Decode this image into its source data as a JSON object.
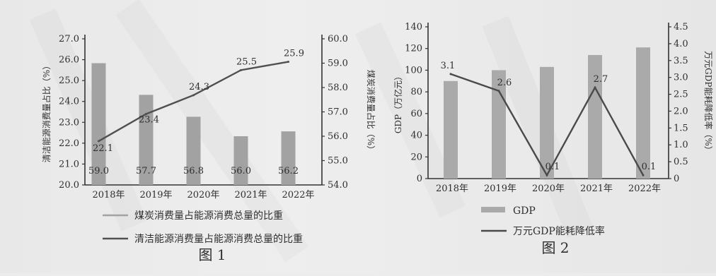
{
  "chart_data": [
    {
      "type": "bar+line",
      "figure_label": "图 1",
      "categories": [
        "2018年",
        "2019年",
        "2020年",
        "2021年",
        "2022年"
      ],
      "left_axis": {
        "label": "清洁能源消费量占比（%）",
        "range": [
          20.0,
          27.0
        ],
        "ticks": [
          "20.0",
          "21.0",
          "22.0",
          "23.0",
          "24.0",
          "25.0",
          "26.0",
          "27.0"
        ]
      },
      "right_axis": {
        "label": "煤炭消费量占比（%）",
        "range": [
          54.0,
          60.0
        ],
        "ticks": [
          "54.0",
          "55.0",
          "56.0",
          "57.0",
          "58.0",
          "59.0",
          "60.0"
        ]
      },
      "series": [
        {
          "name": "煤炭消费量占能源消费总量的比重",
          "type": "bar",
          "axis": "right",
          "values": [
            59.0,
            57.7,
            56.8,
            56.0,
            56.2
          ],
          "labels": [
            "59.0",
            "57.7",
            "56.8",
            "56.0",
            "56.2"
          ]
        },
        {
          "name": "清洁能源消费量占能源消费总量的比重",
          "type": "line",
          "axis": "left",
          "values": [
            22.1,
            23.4,
            24.3,
            25.5,
            25.9
          ],
          "labels": [
            "22.1",
            "23.4",
            "24.3",
            "25.5",
            "25.9"
          ]
        }
      ],
      "colors": {
        "bar": "#a2a2a2",
        "line": "#505050"
      }
    },
    {
      "type": "bar+line",
      "figure_label": "图 2",
      "categories": [
        "2018年",
        "2019年",
        "2020年",
        "2021年",
        "2022年"
      ],
      "left_axis": {
        "label": "GDP（万亿元）",
        "range": [
          0,
          140
        ],
        "ticks": [
          "0",
          "20",
          "40",
          "60",
          "80",
          "100",
          "120",
          "140"
        ]
      },
      "right_axis": {
        "label": "万元GDP能耗降低率（%）",
        "range": [
          0,
          4.5
        ],
        "ticks": [
          "0",
          "0.5",
          "1.0",
          "1.5",
          "2.0",
          "2.5",
          "3.0",
          "3.5",
          "4.0",
          "4.5"
        ]
      },
      "series": [
        {
          "name": "GDP",
          "type": "bar",
          "axis": "left",
          "values": [
            90,
            100,
            103,
            114,
            121
          ]
        },
        {
          "name": "万元GDP能耗降低率",
          "type": "line",
          "axis": "right",
          "values": [
            3.1,
            2.6,
            0.1,
            2.7,
            0.1
          ],
          "labels": [
            "3.1",
            "2.6",
            "0.1",
            "2.7",
            "0.1"
          ]
        }
      ],
      "colors": {
        "bar": "#aaaaaa",
        "line": "#4a4a4a"
      }
    }
  ]
}
